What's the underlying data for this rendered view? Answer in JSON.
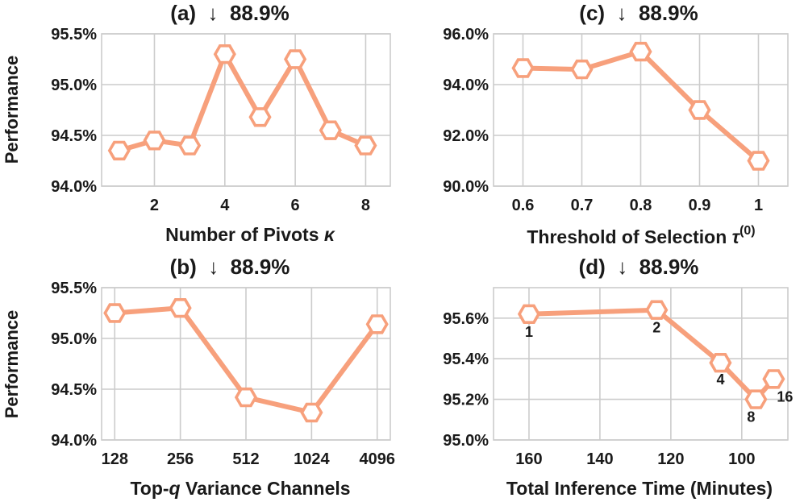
{
  "figure": {
    "ylabel": "Performance"
  },
  "colors": {
    "series": "#f7a07c",
    "grid": "#cccccc",
    "text": "#1a1a1a"
  },
  "chart_data": [
    {
      "id": "a",
      "type": "line",
      "title": "(a)  ↓  88.9%",
      "xlabel": "Number of Pivots κ",
      "xlabel_main": "Number of Pivots ",
      "xlabel_symbol": "κ",
      "ylabel": "Performance",
      "x": [
        1,
        2,
        3,
        4,
        5,
        6,
        7,
        8
      ],
      "values": [
        94.35,
        94.45,
        94.4,
        95.3,
        94.68,
        95.25,
        94.55,
        94.4
      ],
      "xlim": [
        0.5,
        8.7
      ],
      "ylim": [
        94.0,
        95.5
      ],
      "xticks": [
        2,
        4,
        6,
        8
      ],
      "xtick_labels": [
        "2",
        "4",
        "6",
        "8"
      ],
      "yticks": [
        94.0,
        94.5,
        95.0,
        95.5
      ],
      "ytick_labels": [
        "94.0%",
        "94.5%",
        "95.0%",
        "95.5%"
      ],
      "grid": true
    },
    {
      "id": "c",
      "type": "line",
      "title": "(c)  ↓  88.9%",
      "xlabel": "Threshold of Selection τ(0)",
      "xlabel_main": "Threshold of Selection ",
      "xlabel_symbol": "τ",
      "xlabel_sup": "(0)",
      "ylabel": "",
      "x": [
        0.6,
        0.7,
        0.8,
        0.9,
        1.0
      ],
      "values": [
        94.65,
        94.6,
        95.3,
        93.0,
        91.0
      ],
      "xlim": [
        0.55,
        1.05
      ],
      "ylim": [
        90.0,
        96.0
      ],
      "xticks": [
        0.6,
        0.7,
        0.8,
        0.9,
        1.0
      ],
      "xtick_labels": [
        "0.6",
        "0.7",
        "0.8",
        "0.9",
        "1"
      ],
      "yticks": [
        90.0,
        92.0,
        94.0,
        96.0
      ],
      "ytick_labels": [
        "90.0%",
        "92.0%",
        "94.0%",
        "96.0%"
      ],
      "grid": true
    },
    {
      "id": "b",
      "type": "line",
      "title": "(b)  ↓  88.9%",
      "xlabel": "Top-q Variance Channels",
      "xlabel_main": "Top-",
      "xlabel_symbol": "q",
      "xlabel_rest": " Variance Channels",
      "ylabel": "Performance",
      "x": [
        0,
        1,
        2,
        3,
        4
      ],
      "values": [
        95.25,
        95.3,
        94.42,
        94.27,
        95.14
      ],
      "xlim": [
        -0.2,
        4.2
      ],
      "ylim": [
        94.0,
        95.5
      ],
      "xticks": [
        0,
        1,
        2,
        3,
        4
      ],
      "xtick_labels": [
        "128",
        "256",
        "512",
        "1024",
        "4096"
      ],
      "yticks": [
        94.0,
        94.5,
        95.0,
        95.5
      ],
      "ytick_labels": [
        "94.0%",
        "94.5%",
        "95.0%",
        "95.5%"
      ],
      "grid": true
    },
    {
      "id": "d",
      "type": "line",
      "title": "(d)  ↓  88.9%",
      "xlabel": "Total Inference Time (Minutes)",
      "ylabel": "",
      "x": [
        160,
        124,
        106,
        96,
        91
      ],
      "values": [
        95.62,
        95.64,
        95.38,
        95.2,
        95.3
      ],
      "point_labels": [
        "1",
        "2",
        "4",
        "8",
        "16"
      ],
      "xlim": [
        170,
        87
      ],
      "ylim": [
        95.0,
        95.75
      ],
      "xticks": [
        160,
        140,
        120,
        100
      ],
      "xtick_labels": [
        "160",
        "140",
        "120",
        "100"
      ],
      "yticks": [
        95.0,
        95.2,
        95.4,
        95.6
      ],
      "ytick_labels": [
        "95.0%",
        "95.2%",
        "95.4%",
        "95.6%"
      ],
      "grid": true
    }
  ]
}
